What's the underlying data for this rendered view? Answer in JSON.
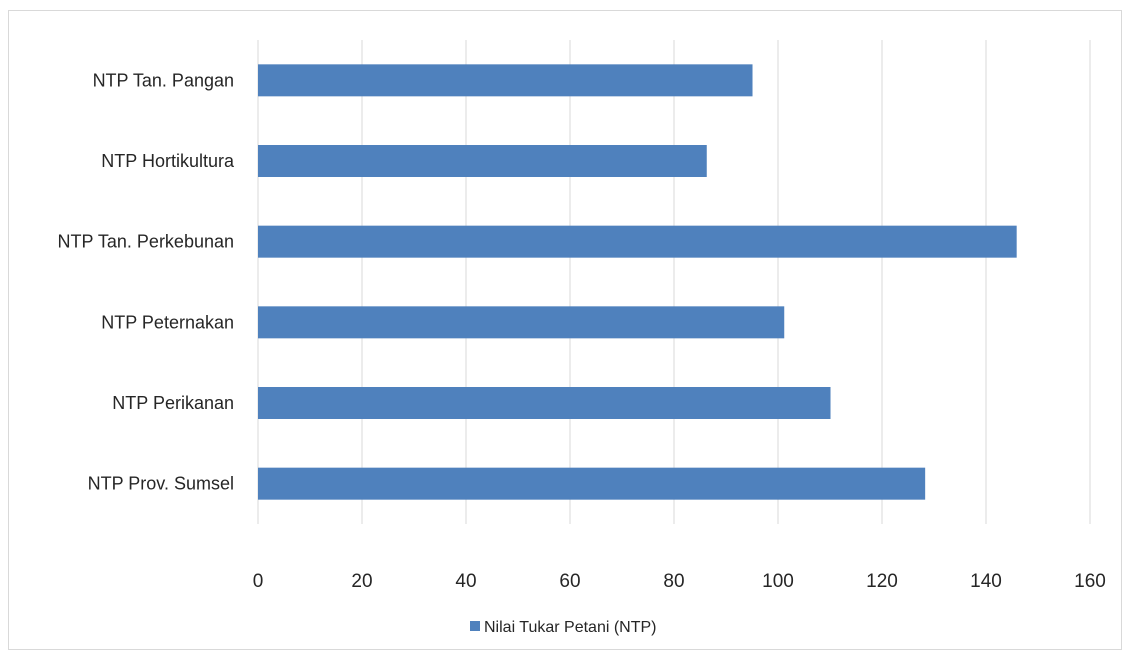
{
  "chart_data": {
    "type": "bar",
    "orientation": "horizontal",
    "categories": [
      "NTP Tan. Pangan",
      "NTP Hortikultura",
      "NTP Tan. Perkebunan",
      "NTP Peternakan",
      "NTP Perikanan",
      "NTP Prov. Sumsel"
    ],
    "series": [
      {
        "name": "Nilai Tukar Petani (NTP)",
        "values": [
          95.1,
          86.3,
          145.9,
          101.2,
          110.1,
          128.3
        ],
        "color": "#4f81bd"
      }
    ],
    "xlim": [
      0,
      160
    ],
    "x_ticks": [
      "0",
      "20",
      "40",
      "60",
      "80",
      "100",
      "120",
      "140",
      "160"
    ],
    "grid": "vertical",
    "legend_position": "bottom",
    "title": "",
    "xlabel": "",
    "ylabel": ""
  }
}
